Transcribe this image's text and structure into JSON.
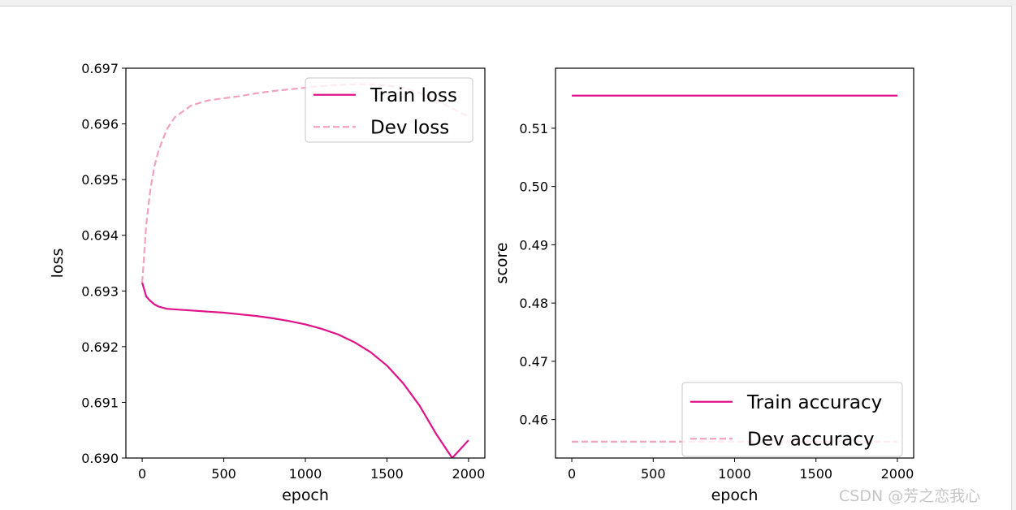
{
  "watermark": "CSDN @芳之恋我心",
  "colors": {
    "train": "#e0128a",
    "dev": "#f2a2c0"
  },
  "chart_data": [
    {
      "type": "line",
      "xlabel": "epoch",
      "ylabel": "loss",
      "xlim": [
        -100,
        2100
      ],
      "ylim": [
        0.69,
        0.697
      ],
      "xticks": [
        0,
        500,
        1000,
        1500,
        2000
      ],
      "yticks": [
        0.69,
        0.691,
        0.692,
        0.693,
        0.694,
        0.695,
        0.696,
        0.697
      ],
      "legend_position": "top-right",
      "grid": false,
      "x": [
        0,
        25,
        50,
        75,
        100,
        150,
        200,
        300,
        400,
        500,
        600,
        700,
        800,
        900,
        1000,
        1100,
        1200,
        1300,
        1400,
        1500,
        1600,
        1700,
        1800,
        1900,
        2000
      ],
      "series": [
        {
          "name": "Train loss",
          "style": "solid",
          "values": [
            0.69315,
            0.6929,
            0.69282,
            0.69276,
            0.69272,
            0.69268,
            0.69267,
            0.69265,
            0.69263,
            0.69261,
            0.69258,
            0.69255,
            0.69251,
            0.69246,
            0.6924,
            0.69232,
            0.69222,
            0.69208,
            0.6919,
            0.69166,
            0.69134,
            0.69094,
            0.69044,
            0.69,
            0.69032
          ]
        },
        {
          "name": "Dev loss",
          "style": "dashed",
          "values": [
            0.69315,
            0.6942,
            0.69482,
            0.69524,
            0.69552,
            0.6959,
            0.69612,
            0.69633,
            0.69642,
            0.69646,
            0.6965,
            0.69655,
            0.69659,
            0.69662,
            0.69665,
            0.69668,
            0.6967,
            0.69671,
            0.69671,
            0.69669,
            0.69665,
            0.69656,
            0.69642,
            0.69628,
            0.69613
          ]
        }
      ]
    },
    {
      "type": "line",
      "xlabel": "epoch",
      "ylabel": "score",
      "xlim": [
        -100,
        2100
      ],
      "ylim": [
        0.4534,
        0.5203
      ],
      "xticks": [
        0,
        500,
        1000,
        1500,
        2000
      ],
      "yticks": [
        0.46,
        0.47,
        0.48,
        0.49,
        0.5,
        0.51
      ],
      "legend_position": "bottom-right",
      "grid": false,
      "x": [
        0,
        2000
      ],
      "series": [
        {
          "name": "Train accuracy",
          "style": "solid",
          "values": [
            0.5156,
            0.5156
          ]
        },
        {
          "name": "Dev accuracy",
          "style": "dashed",
          "values": [
            0.4562,
            0.4562
          ]
        }
      ]
    }
  ]
}
